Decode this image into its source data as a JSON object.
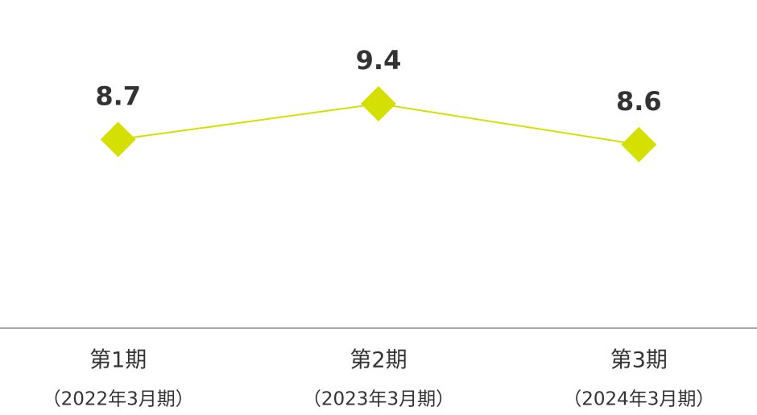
{
  "chart_data": {
    "type": "line",
    "categories": [
      [
        "第1期",
        "（2022年3月期）"
      ],
      [
        "第2期",
        "（2023年3月期）"
      ],
      [
        "第3期",
        "（2024年3月期）"
      ]
    ],
    "series": [
      {
        "color": "#d6e000",
        "values": [
          8.7,
          9.4,
          8.6
        ]
      }
    ],
    "ylim": [
      5,
      10
    ]
  }
}
